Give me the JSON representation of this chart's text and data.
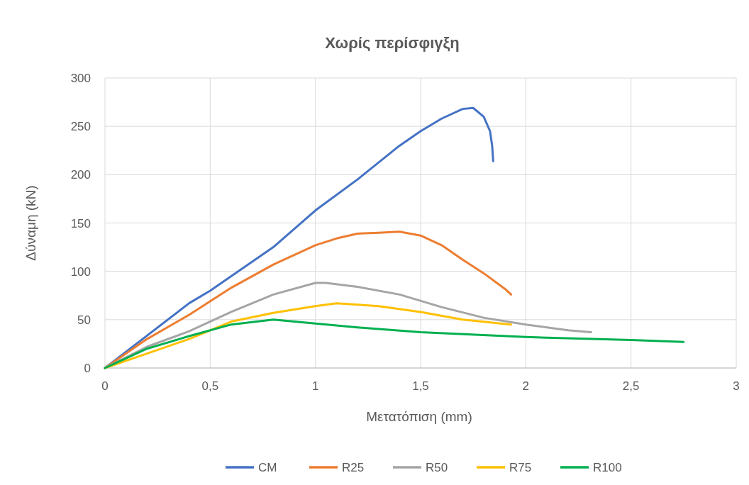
{
  "chart_data": {
    "type": "line",
    "title": "Χωρίς περίσφιγξη",
    "xlabel": "Μετατόπιση (mm)",
    "ylabel": "Δύναμη (kN)",
    "xlim": [
      0,
      3
    ],
    "xticks": [
      0,
      {
        "value": 0.5,
        "label": "0,5"
      },
      1,
      {
        "value": 1.5,
        "label": "1,5"
      },
      2,
      {
        "value": 2.5,
        "label": "2,5"
      },
      3
    ],
    "ylim": [
      0,
      300
    ],
    "yticks": [
      0,
      50,
      100,
      150,
      200,
      250,
      300
    ],
    "grid": true,
    "legend": "bottom",
    "marker": "none",
    "line_style": "solid",
    "series": [
      {
        "name": "CM",
        "color": "#4472c4",
        "x": [
          0,
          0.4,
          0.5,
          0.6,
          0.8,
          1.0,
          1.2,
          1.4,
          1.5,
          1.6,
          1.7,
          1.75,
          1.8,
          1.83,
          1.84,
          1.845
        ],
        "values": [
          0,
          67,
          80,
          95,
          125,
          163,
          195,
          230,
          245,
          258,
          268,
          269,
          260,
          245,
          230,
          214
        ]
      },
      {
        "name": "R25",
        "color": "#ed7d31",
        "x": [
          0,
          0.2,
          0.4,
          0.6,
          0.8,
          1.0,
          1.1,
          1.2,
          1.3,
          1.4,
          1.5,
          1.6,
          1.7,
          1.8,
          1.9,
          1.93
        ],
        "values": [
          0,
          30,
          55,
          83,
          107,
          127,
          134,
          139,
          140,
          141,
          137,
          127,
          112,
          98,
          82,
          76
        ]
      },
      {
        "name": "R50",
        "color": "#a5a5a5",
        "x": [
          0,
          0.2,
          0.4,
          0.6,
          0.8,
          1.0,
          1.05,
          1.2,
          1.4,
          1.6,
          1.8,
          2.0,
          2.2,
          2.31
        ],
        "values": [
          0,
          22,
          38,
          58,
          76,
          88,
          88,
          84,
          76,
          63,
          52,
          45,
          39,
          37
        ]
      },
      {
        "name": "R75",
        "color": "#ffc000",
        "x": [
          0,
          0.2,
          0.4,
          0.6,
          0.8,
          1.0,
          1.1,
          1.3,
          1.5,
          1.7,
          1.93
        ],
        "values": [
          0,
          15,
          30,
          48,
          57,
          64,
          67,
          64,
          58,
          50,
          45
        ]
      },
      {
        "name": "R100",
        "color": "#00b050",
        "x": [
          0,
          0.2,
          0.4,
          0.6,
          0.8,
          1.0,
          1.2,
          1.5,
          2.0,
          2.5,
          2.75
        ],
        "values": [
          0,
          20,
          33,
          45,
          50,
          46,
          42,
          37,
          32,
          29,
          27
        ]
      }
    ]
  }
}
